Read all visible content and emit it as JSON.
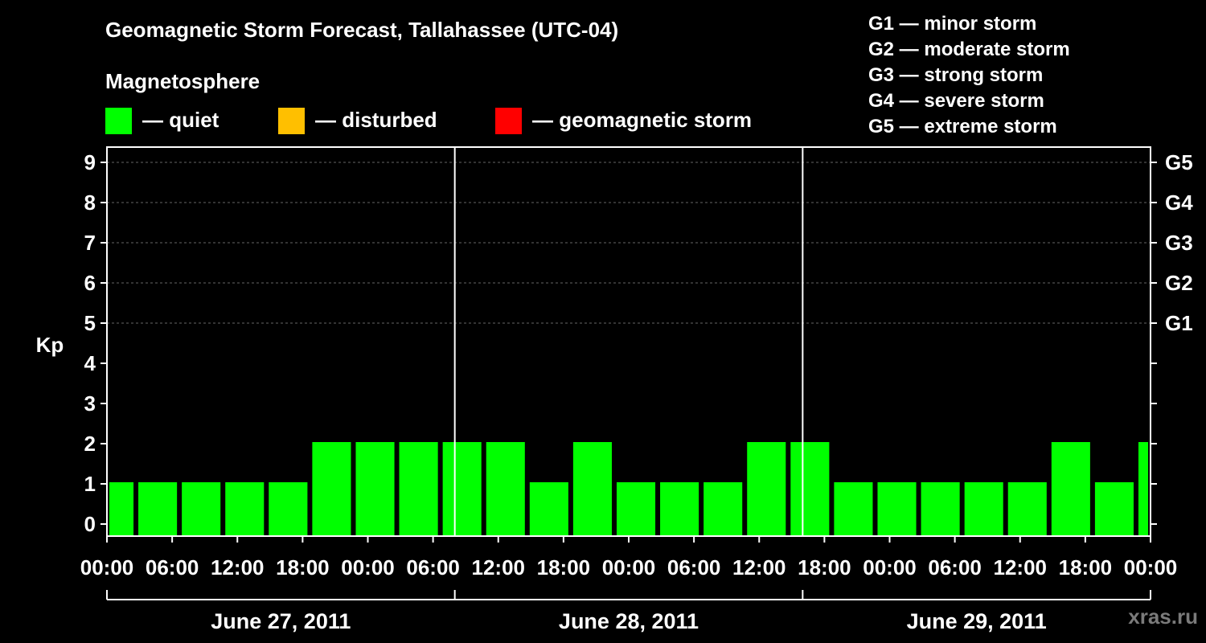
{
  "title": "Geomagnetic Storm Forecast, Tallahassee (UTC-04)",
  "legend": {
    "title": "Magnetosphere",
    "items": [
      {
        "label": "— quiet",
        "color": "#00ff00"
      },
      {
        "label": "— disturbed",
        "color": "#ffbf00"
      },
      {
        "label": "— geomagnetic storm",
        "color": "#ff0000"
      }
    ]
  },
  "storm_scale": [
    "G1 — minor storm",
    "G2 — moderate storm",
    "G3 — strong storm",
    "G4 — severe storm",
    "G5 — extreme storm"
  ],
  "credit": "xras.ru",
  "chart_data": {
    "type": "bar",
    "ylabel": "Kp",
    "ylim": [
      0,
      9
    ],
    "yticks": [
      0,
      1,
      2,
      3,
      4,
      5,
      6,
      7,
      8,
      9
    ],
    "right_axis_labels": [
      {
        "kp": 5,
        "label": "G1"
      },
      {
        "kp": 6,
        "label": "G2"
      },
      {
        "kp": 7,
        "label": "G3"
      },
      {
        "kp": 8,
        "label": "G4"
      },
      {
        "kp": 9,
        "label": "G5"
      }
    ],
    "grid": "dashed horizontal at Kp 5-9",
    "x_tick_labels": [
      "00:00",
      "06:00",
      "12:00",
      "18:00",
      "00:00",
      "06:00",
      "12:00",
      "18:00",
      "00:00",
      "06:00",
      "12:00",
      "18:00",
      "00:00",
      "06:00",
      "12:00",
      "18:00",
      "00:00"
    ],
    "days": [
      "June 27, 2011",
      "June 28, 2011",
      "June 29, 2011"
    ],
    "x_range_hours": [
      0,
      72
    ],
    "bars": [
      {
        "start_hour": 0,
        "end_hour": 2,
        "kp": 1
      },
      {
        "start_hour": 2,
        "end_hour": 5,
        "kp": 1
      },
      {
        "start_hour": 5,
        "end_hour": 8,
        "kp": 1
      },
      {
        "start_hour": 8,
        "end_hour": 11,
        "kp": 1
      },
      {
        "start_hour": 11,
        "end_hour": 14,
        "kp": 1
      },
      {
        "start_hour": 14,
        "end_hour": 17,
        "kp": 2
      },
      {
        "start_hour": 17,
        "end_hour": 20,
        "kp": 2
      },
      {
        "start_hour": 20,
        "end_hour": 23,
        "kp": 2
      },
      {
        "start_hour": 23,
        "end_hour": 26,
        "kp": 2
      },
      {
        "start_hour": 26,
        "end_hour": 29,
        "kp": 2
      },
      {
        "start_hour": 29,
        "end_hour": 32,
        "kp": 1
      },
      {
        "start_hour": 32,
        "end_hour": 35,
        "kp": 2
      },
      {
        "start_hour": 35,
        "end_hour": 38,
        "kp": 1
      },
      {
        "start_hour": 38,
        "end_hour": 41,
        "kp": 1
      },
      {
        "start_hour": 41,
        "end_hour": 44,
        "kp": 1
      },
      {
        "start_hour": 44,
        "end_hour": 47,
        "kp": 2
      },
      {
        "start_hour": 47,
        "end_hour": 50,
        "kp": 2
      },
      {
        "start_hour": 50,
        "end_hour": 53,
        "kp": 1
      },
      {
        "start_hour": 53,
        "end_hour": 56,
        "kp": 1
      },
      {
        "start_hour": 56,
        "end_hour": 59,
        "kp": 1
      },
      {
        "start_hour": 59,
        "end_hour": 62,
        "kp": 1
      },
      {
        "start_hour": 62,
        "end_hour": 65,
        "kp": 1
      },
      {
        "start_hour": 65,
        "end_hour": 68,
        "kp": 2
      },
      {
        "start_hour": 68,
        "end_hour": 71,
        "kp": 1
      },
      {
        "start_hour": 71,
        "end_hour": 72,
        "kp": 2
      }
    ]
  }
}
